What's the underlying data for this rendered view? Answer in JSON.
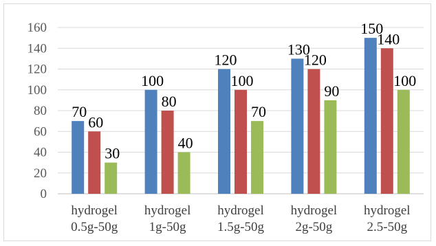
{
  "chart_data": {
    "type": "bar",
    "categories": [
      [
        "hydrogel",
        "0.5g-50g"
      ],
      [
        "hydrogel",
        "1g-50g"
      ],
      [
        "hydrogel",
        "1.5g-50g"
      ],
      [
        "hydrogel",
        "2g-50g"
      ],
      [
        "hydrogel",
        "2.5-50g"
      ]
    ],
    "series": [
      {
        "values": [
          70,
          100,
          120,
          130,
          150
        ],
        "color": "#4f81bd"
      },
      {
        "values": [
          60,
          80,
          100,
          120,
          140
        ],
        "color": "#c0504d"
      },
      {
        "values": [
          30,
          40,
          70,
          90,
          100
        ],
        "color": "#9bbb59"
      }
    ],
    "yticks": [
      0,
      20,
      40,
      60,
      80,
      100,
      120,
      140,
      160
    ],
    "ylim": [
      0,
      160
    ],
    "grid": true,
    "data_labels": true,
    "title": "",
    "xlabel": "",
    "ylabel": ""
  }
}
